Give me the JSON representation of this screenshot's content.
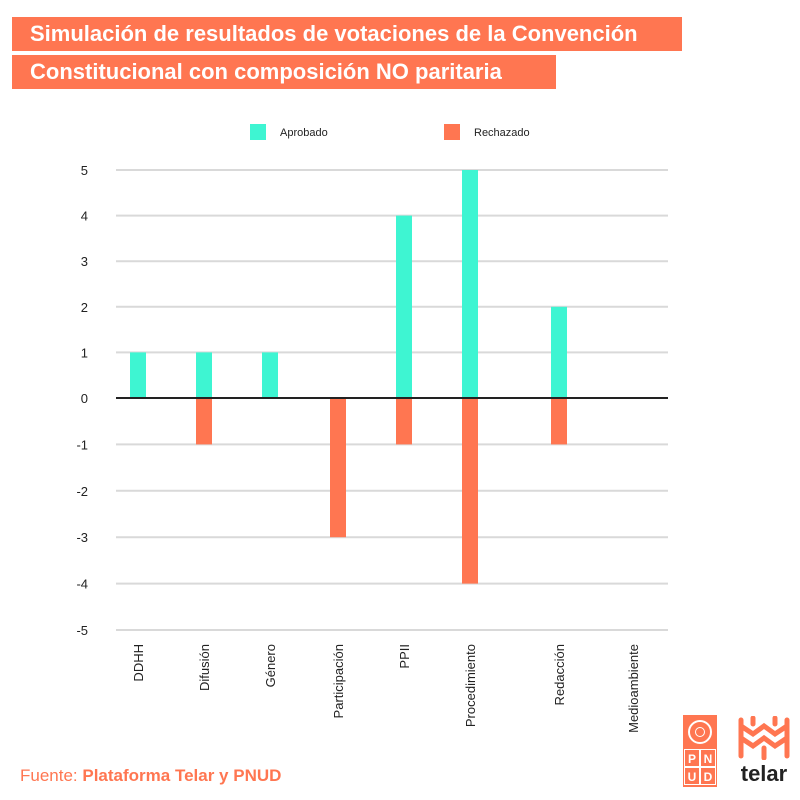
{
  "title": {
    "line1": "Simulación de resultados de votaciones de la Convención",
    "line2": "Constitucional con composición NO paritaria"
  },
  "source": {
    "prefix": "Fuente: ",
    "name": "Plataforma Telar y PNUD"
  },
  "logos": {
    "pnud_letters": [
      "P",
      "N",
      "U",
      "D"
    ],
    "telar_word": "telar"
  },
  "colors": {
    "aprobado": "#3ef5d2",
    "rechazado": "#ff7651",
    "accent": "#ff7651",
    "grid": "#d9d9d9",
    "zero_line": "#222222"
  },
  "chart_data": {
    "type": "bar",
    "title": "",
    "xlabel": "",
    "ylabel": "",
    "categories": [
      "DDHH",
      "Difusión",
      "Género",
      "Participación",
      "PPII",
      "Procedimiento",
      "Redacción",
      "Medioambiente"
    ],
    "series": [
      {
        "name": "Aprobado",
        "values": [
          1,
          1,
          1,
          0,
          4,
          5,
          2,
          0
        ]
      },
      {
        "name": "Rechazado",
        "values": [
          0,
          -1,
          0,
          -3,
          -1,
          -4,
          -1,
          0
        ]
      }
    ],
    "yticks": [
      "5",
      "4",
      "3",
      "2",
      "1",
      "0",
      "-1",
      "-2",
      "-3",
      "-4",
      "-5"
    ],
    "ylim": [
      -5,
      5
    ],
    "grid": true,
    "legend_position": "top"
  }
}
